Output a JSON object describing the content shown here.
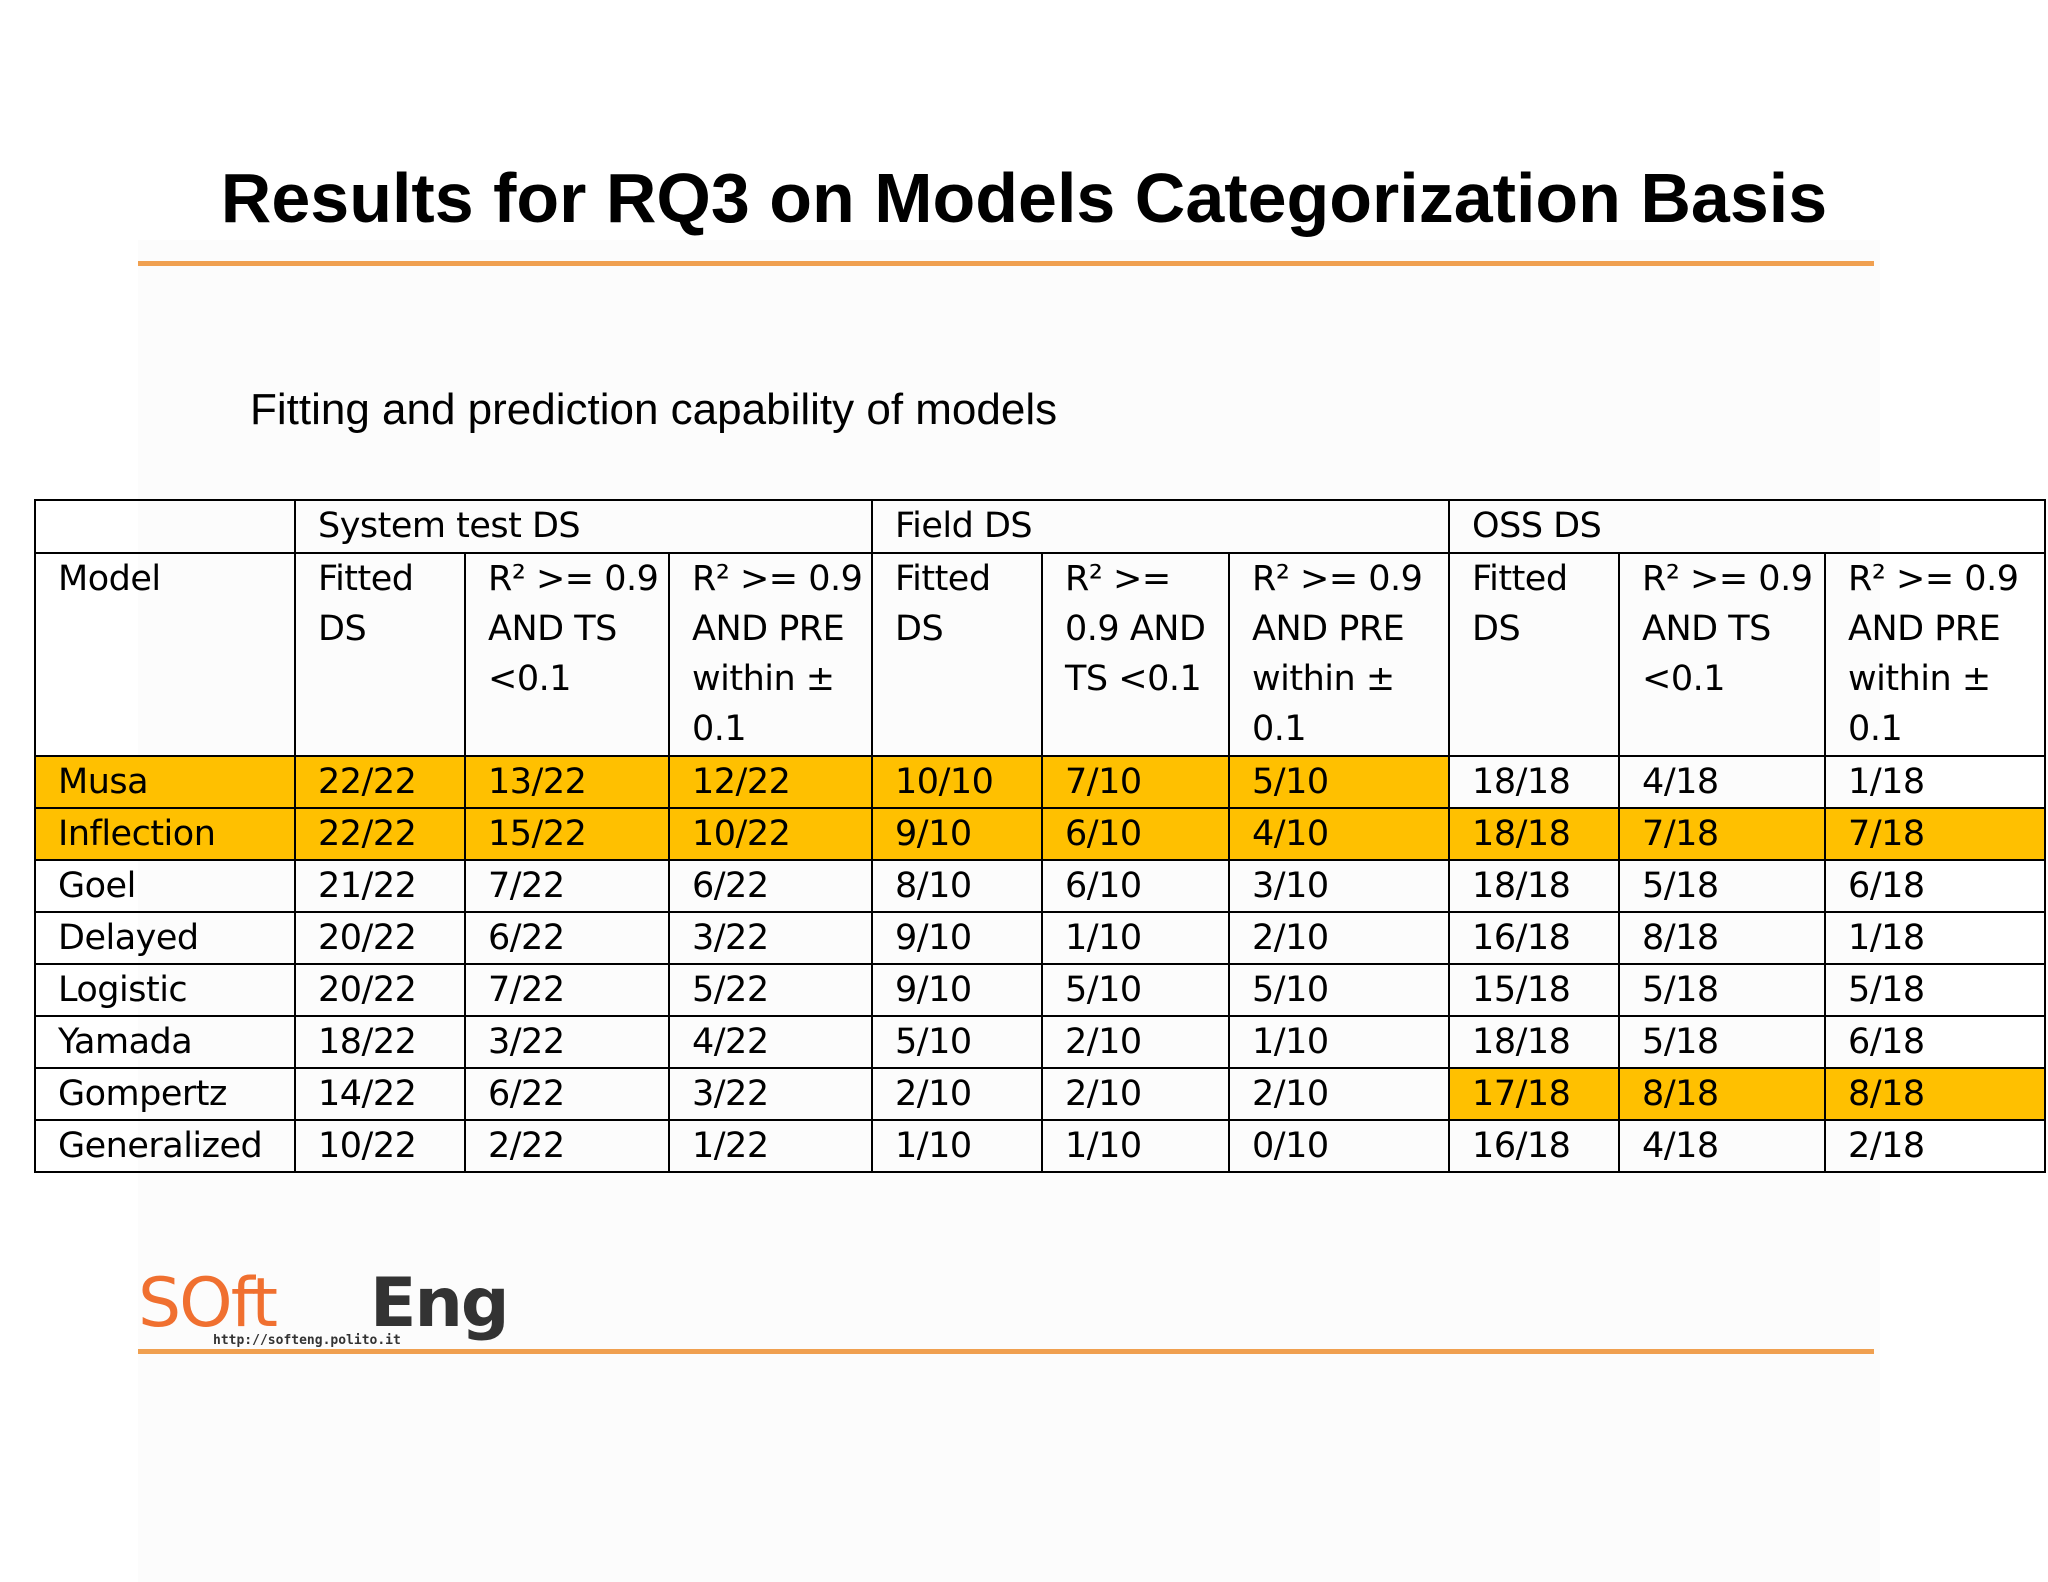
{
  "slide": {
    "title": "Results for RQ3 on Models Categorization Basis",
    "subtitle": "Fitting and prediction capability of models"
  },
  "table": {
    "group_headers": [
      "System test DS",
      "Field DS",
      "OSS DS"
    ],
    "model_header": "Model",
    "column_headers": [
      "Fitted DS",
      "R² >= 0.9 AND TS <0.1",
      "R² >= 0.9 AND PRE within ± 0.1",
      "Fitted DS",
      "R² >= 0.9 AND TS <0.1",
      "R² >= 0.9 AND PRE within ± 0.1",
      "Fitted DS",
      "R² >= 0.9 AND TS <0.1",
      "R² >= 0.9 AND PRE within ± 0.1"
    ],
    "rows": [
      {
        "model": "Musa",
        "values": [
          "22/22",
          "13/22",
          "12/22",
          "10/10",
          "7/10",
          "5/10",
          "18/18",
          "4/18",
          "1/18"
        ]
      },
      {
        "model": "Inflection",
        "values": [
          "22/22",
          "15/22",
          "10/22",
          "9/10",
          "6/10",
          "4/10",
          "18/18",
          "7/18",
          "7/18"
        ]
      },
      {
        "model": "Goel",
        "values": [
          "21/22",
          "7/22",
          "6/22",
          "8/10",
          "6/10",
          "3/10",
          "18/18",
          "5/18",
          "6/18"
        ]
      },
      {
        "model": "Delayed",
        "values": [
          "20/22",
          "6/22",
          "3/22",
          "9/10",
          "1/10",
          "2/10",
          "16/18",
          "8/18",
          "1/18"
        ]
      },
      {
        "model": "Logistic",
        "values": [
          "20/22",
          "7/22",
          "5/22",
          "9/10",
          "5/10",
          "5/10",
          "15/18",
          "5/18",
          "5/18"
        ]
      },
      {
        "model": "Yamada",
        "values": [
          "18/22",
          "3/22",
          "4/22",
          "5/10",
          "2/10",
          "1/10",
          "18/18",
          "5/18",
          "6/18"
        ]
      },
      {
        "model": "Gompertz",
        "values": [
          "14/22",
          "6/22",
          "3/22",
          "2/10",
          "2/10",
          "2/10",
          "17/18",
          "8/18",
          "8/18"
        ]
      },
      {
        "model": "Generalized",
        "values": [
          "10/22",
          "2/22",
          "1/22",
          "1/10",
          "1/10",
          "0/10",
          "16/18",
          "4/18",
          "2/18"
        ]
      }
    ],
    "highlight_color": "#ffc000"
  },
  "logo": {
    "text": "SoftEng",
    "url_text": "http://softeng.polito.it",
    "accent": "#f0a050"
  }
}
